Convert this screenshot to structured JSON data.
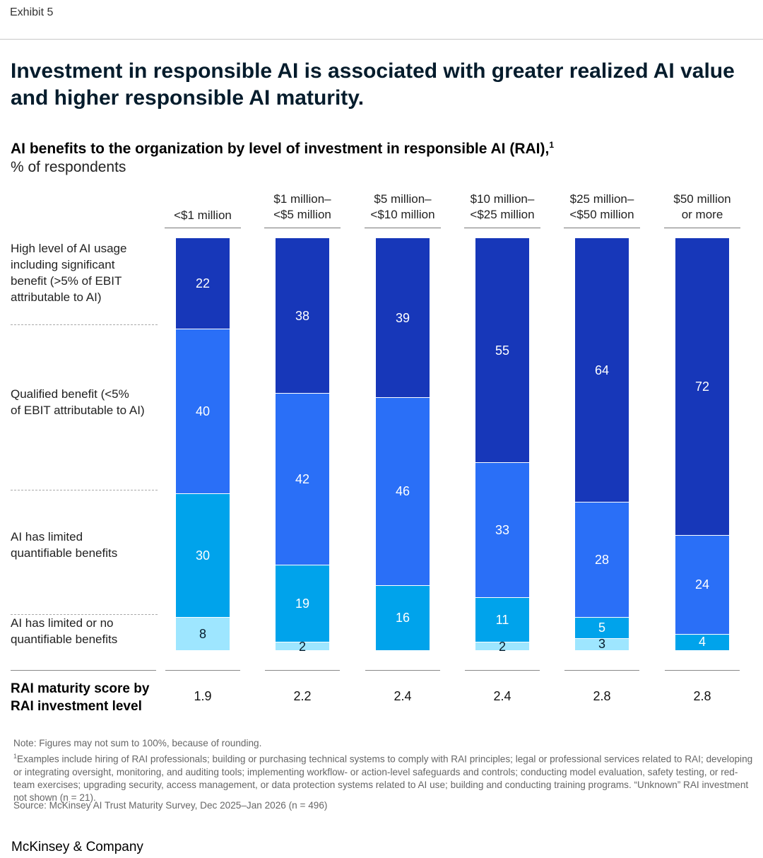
{
  "exhibit_label": "Exhibit 5",
  "headline": "Investment in responsible AI is associated with greater realized AI value and higher responsible AI maturity.",
  "colors": {
    "high": "#1737b9",
    "qualified": "#2a6ff7",
    "limited": "#00a3eb",
    "limited_or_none": "#9ee6ff",
    "label_dark": "#ffffff",
    "label_light": "#051c2c"
  },
  "chart_data": {
    "type": "bar",
    "stacked": true,
    "title": "AI benefits to the organization by level of investment in responsible AI (RAI),",
    "title_footnote_marker": "1",
    "unit_label": "% of respondents",
    "categories": [
      [
        "<$1 million"
      ],
      [
        "$1 million–",
        "<$5 million"
      ],
      [
        "$5 million–",
        "<$10 million"
      ],
      [
        "$10 million–",
        "<$25 million"
      ],
      [
        "$25 million–",
        "<$50 million"
      ],
      [
        "$50 million",
        "or more"
      ]
    ],
    "series": [
      {
        "name": "High level of AI usage including significant benefit (>5% of EBIT attributable to AI)",
        "label_lines": [
          "High level of AI usage",
          "including significant",
          "benefit (>5% of EBIT",
          "attributable to AI)"
        ],
        "key": "high",
        "values": [
          22,
          38,
          39,
          55,
          64,
          72
        ]
      },
      {
        "name": "Qualified benefit (<5% of EBIT attributable to AI)",
        "label_lines": [
          "Qualified benefit (<5%",
          "of EBIT attributable to AI)"
        ],
        "key": "qualified",
        "values": [
          40,
          42,
          46,
          33,
          28,
          24
        ]
      },
      {
        "name": "AI has limited quantifiable benefits",
        "label_lines": [
          "AI has limited",
          "quantifiable benefits"
        ],
        "key": "limited",
        "values": [
          30,
          19,
          16,
          11,
          5,
          4
        ]
      },
      {
        "name": "AI has limited or no quantifiable benefits",
        "label_lines": [
          "AI has limited or no",
          "quantifiable benefits"
        ],
        "key": "limited_or_none",
        "values": [
          8,
          2,
          null,
          2,
          3,
          null
        ]
      }
    ],
    "maturity_label_lines": [
      "RAI maturity score by",
      "RAI investment level"
    ],
    "maturity_scores": [
      "1.9",
      "2.2",
      "2.4",
      "2.4",
      "2.8",
      "2.8"
    ]
  },
  "notes": {
    "note": "Note: Figures may not sum to 100%, because of rounding.",
    "footnote_marker": "1",
    "footnote": "Examples include hiring of RAI professionals; building or purchasing technical systems to comply with RAI principles; legal or professional services related to RAI; developing or integrating oversight, monitoring, and auditing tools; implementing workflow- or action-level safeguards and controls; conducting model evaluation, safety testing, or red-team exercises; upgrading security, access management, or data protection systems related to AI use; building and conducting training programs. “Unknown” RAI investment not shown (n = 21).",
    "source": "Source: McKinsey AI Trust Maturity Survey, Dec 2025–Jan 2026 (n = 496)"
  },
  "brand": "McKinsey & Company"
}
